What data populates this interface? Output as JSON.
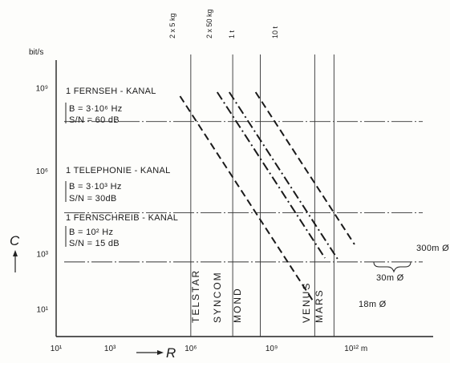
{
  "chart_data": {
    "type": "line",
    "x_scale": "log",
    "y_scale": "log",
    "x_unit": "m",
    "y_unit": "bit/s",
    "xlabel": "R",
    "ylabel": "C",
    "xlim": [
      10,
      1000000000000000.0
    ],
    "ylim": [
      1,
      10000000000.0
    ],
    "x_ticks": [
      {
        "value": 10,
        "label": "10¹"
      },
      {
        "value": 1000,
        "label": "10³"
      },
      {
        "value": 1000000,
        "label": "10⁶"
      },
      {
        "value": 1000000000,
        "label": "10⁹"
      },
      {
        "value": 1000000000000,
        "label": "10¹² m"
      }
    ],
    "y_ticks": [
      {
        "value": 10,
        "label": "10¹"
      },
      {
        "value": 1000,
        "label": "10³"
      },
      {
        "value": 1000000,
        "label": "10⁶"
      },
      {
        "value": 1000000000,
        "label": "10⁹"
      }
    ],
    "channels": [
      {
        "name": "1 FERNSEH - KANAL",
        "lines": [
          "B = 3·10⁶ Hz",
          "S/N = 60 dB"
        ],
        "capacity": 60000000
      },
      {
        "name": "1 TELEPHONIE - KANAL",
        "lines": [
          "B = 3·10³ Hz",
          "S/N = 30dB"
        ],
        "capacity": 30000
      },
      {
        "name": "1 FERNSCHREIB - KANAL",
        "lines": [
          "B = 10² Hz",
          "S/N = 15 dB"
        ],
        "capacity": 500
      }
    ],
    "distances": [
      {
        "label": "TELSTAR",
        "x": 1000000
      },
      {
        "label": "SYNCOM",
        "x": 36000000
      },
      {
        "label": "MOND",
        "x": 380000000
      },
      {
        "label": "VENUS",
        "x": 40000000000
      },
      {
        "label": "MARS",
        "x": 40000000000
      }
    ],
    "masses": [
      "2 x 5 kg",
      "2 x 50 kg",
      "1 t",
      "10 t"
    ],
    "series": [
      {
        "mass": "2 x 5 kg",
        "style": "dash",
        "points": [
          [
            250000,
            1000000000
          ],
          [
            250000000000,
            1
          ]
        ]
      },
      {
        "mass": "2 x 50 kg",
        "style": "dashdot",
        "points": [
          [
            7500000,
            1000000000
          ],
          [
            7500000000000,
            1
          ]
        ]
      },
      {
        "mass": "1 t",
        "style": "dashdot",
        "points": [
          [
            21000000,
            1000000000
          ],
          [
            21000000000000,
            1
          ]
        ]
      },
      {
        "mass": "10 t",
        "style": "dash",
        "points": [
          [
            200000000,
            1000000000
          ],
          [
            200000000000000,
            1
          ]
        ]
      }
    ],
    "antennas": [
      {
        "label": "18m Ø",
        "series": 0
      },
      {
        "label": "30m Ø",
        "series": 1
      },
      {
        "label": "300m Ø",
        "series": 3
      }
    ]
  }
}
